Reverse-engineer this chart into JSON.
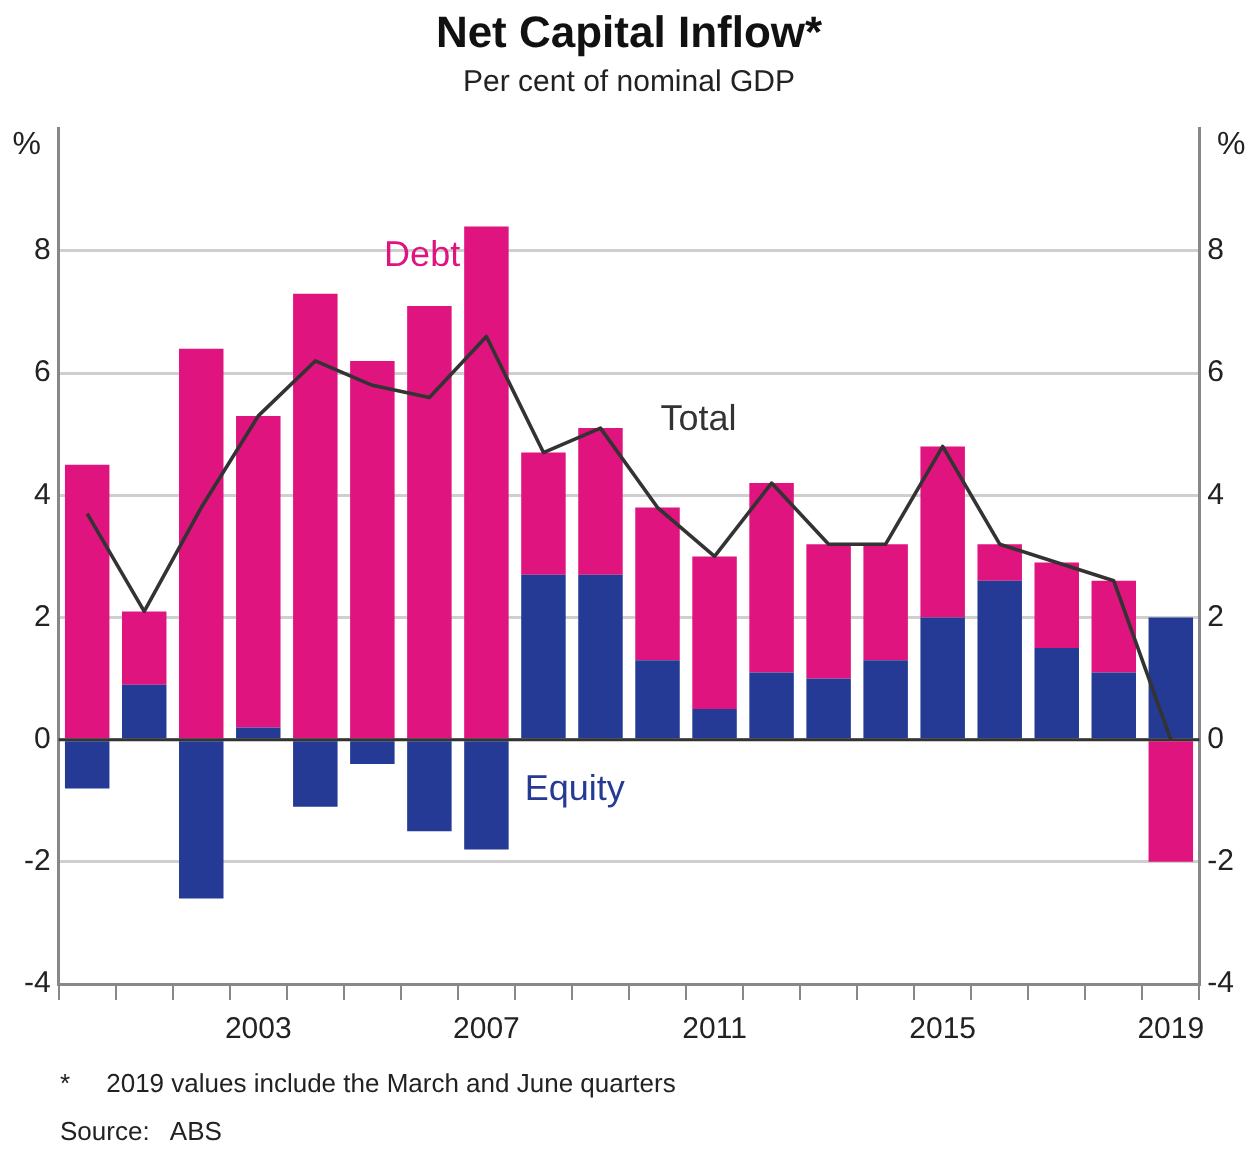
{
  "chart_data": {
    "type": "bar",
    "title": "Net Capital Inflow*",
    "subtitle": "Per cent of nominal GDP",
    "ylabel": "%",
    "y2label": "%",
    "categories": [
      null,
      null,
      null,
      "2003",
      null,
      null,
      null,
      "2007",
      null,
      null,
      null,
      "2011",
      null,
      null,
      null,
      "2015",
      null,
      null,
      null,
      "2019"
    ],
    "stacked": true,
    "series": [
      {
        "name": "Equity",
        "color": "#253a94",
        "values": [
          -0.8,
          0.9,
          -2.6,
          0.2,
          -1.1,
          -0.4,
          -1.5,
          -1.8,
          2.7,
          2.7,
          1.3,
          0.5,
          1.1,
          1.0,
          1.3,
          2.0,
          2.6,
          1.5,
          1.1,
          2.0
        ]
      },
      {
        "name": "Debt",
        "color": "#e0147f",
        "values": [
          4.5,
          1.2,
          6.4,
          5.1,
          7.3,
          6.2,
          7.1,
          8.4,
          2.0,
          2.4,
          2.5,
          2.5,
          3.1,
          2.2,
          1.9,
          2.8,
          0.6,
          1.4,
          1.5,
          -2.0
        ]
      },
      {
        "name": "Total",
        "type": "line",
        "color": "#333333",
        "values": [
          3.7,
          2.1,
          3.8,
          5.3,
          6.2,
          5.8,
          5.6,
          6.6,
          4.7,
          5.1,
          3.8,
          3.0,
          4.2,
          3.2,
          3.2,
          4.8,
          3.2,
          2.9,
          2.6,
          0.0
        ]
      }
    ],
    "ylim": [
      -4,
      10
    ],
    "yticks": [
      -4,
      -2,
      0,
      2,
      4,
      6,
      8
    ],
    "y2lim": [
      -4,
      10
    ],
    "y2ticks": [
      -4,
      -2,
      0,
      2,
      4,
      6,
      8
    ],
    "grid": "y",
    "legend": false,
    "marker": "none",
    "line_style": "solid",
    "annotations": [
      "*     2019 values include the March and June quarters",
      "Source:   ABS"
    ]
  }
}
